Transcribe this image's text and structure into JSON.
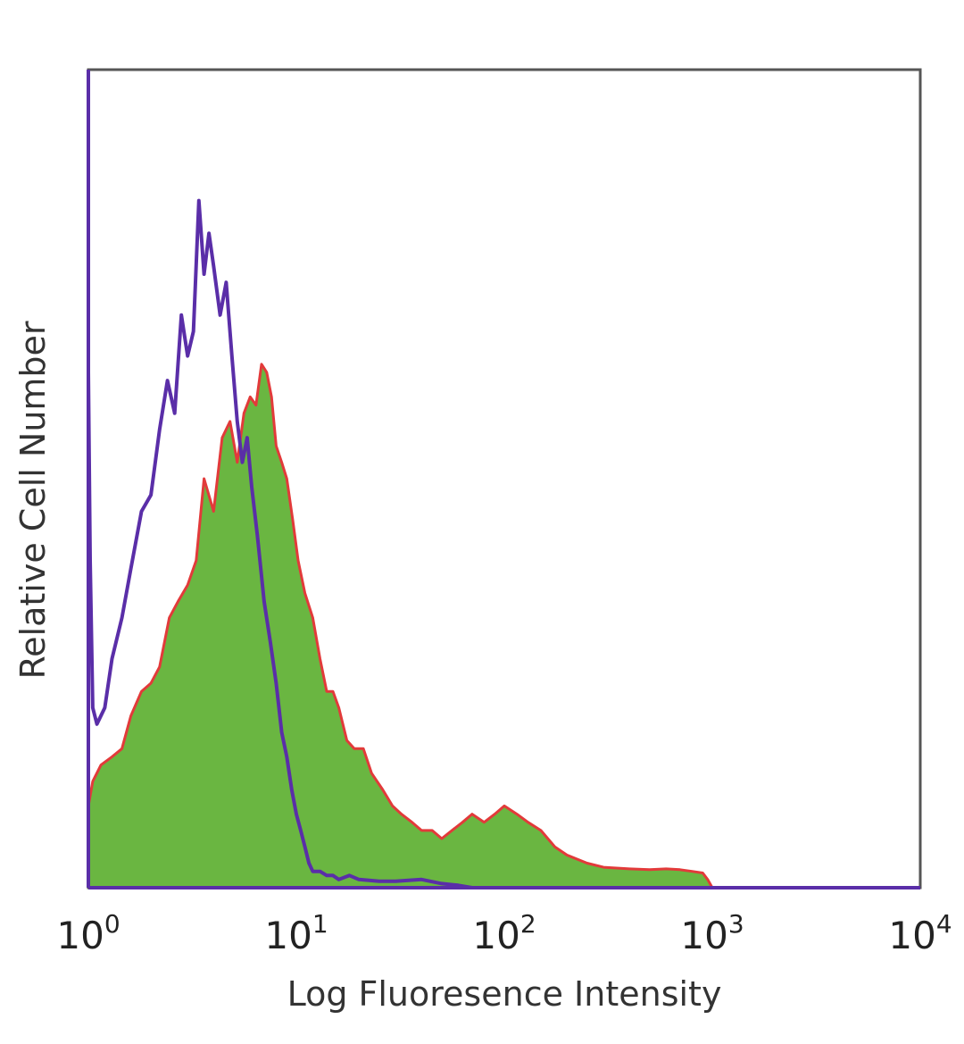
{
  "chart_data": {
    "type": "area",
    "xlabel": "Log Fluoresence Intensity",
    "ylabel": "Relative Cell Number",
    "x_scale": "log",
    "xlim": [
      1,
      10000
    ],
    "ylim": [
      0,
      100
    ],
    "grid": false,
    "x_ticks": [
      {
        "base": "10",
        "exp": "0",
        "value": 1
      },
      {
        "base": "10",
        "exp": "1",
        "value": 10
      },
      {
        "base": "10",
        "exp": "2",
        "value": 100
      },
      {
        "base": "10",
        "exp": "3",
        "value": 1000
      },
      {
        "base": "10",
        "exp": "4",
        "value": 10000
      }
    ],
    "colors": {
      "filled_fill": "#6ab641",
      "filled_edge": "#e23a3a",
      "outline": "#5a2ea8",
      "frame": "#555555"
    },
    "series": [
      {
        "style": "filled",
        "x": [
          1,
          1.05,
          1.15,
          1.3,
          1.45,
          1.6,
          1.8,
          2.0,
          2.2,
          2.45,
          2.7,
          3.0,
          3.3,
          3.6,
          4.0,
          4.4,
          4.8,
          5.2,
          5.6,
          6.0,
          6.4,
          6.8,
          7.2,
          7.6,
          8.0,
          8.5,
          9.0,
          9.6,
          10.2,
          11,
          12,
          13,
          14,
          15,
          16,
          17.5,
          19,
          21,
          23,
          26,
          29,
          32,
          36,
          40,
          45,
          50,
          56,
          63,
          70,
          80,
          90,
          100,
          115,
          130,
          150,
          175,
          200,
          250,
          300,
          400,
          500,
          600,
          700,
          800,
          900,
          950,
          1000
        ],
        "y": [
          10,
          13,
          15,
          16,
          17,
          21,
          24,
          25,
          27,
          33,
          35,
          37,
          40,
          50,
          46,
          55,
          57,
          52,
          58,
          60,
          59,
          64,
          63,
          60,
          54,
          52,
          50,
          45,
          40,
          36,
          33,
          28,
          24,
          24,
          22,
          18,
          17,
          17,
          14,
          12,
          10,
          9,
          8,
          7,
          7,
          6,
          7,
          8,
          9,
          8,
          9,
          10,
          9,
          8,
          7,
          5,
          4,
          3,
          2.5,
          2.3,
          2.2,
          2.3,
          2.2,
          2.0,
          1.8,
          1.0,
          0
        ]
      },
      {
        "style": "outline",
        "x": [
          1,
          1.02,
          1.05,
          1.1,
          1.2,
          1.3,
          1.45,
          1.6,
          1.8,
          2.0,
          2.2,
          2.4,
          2.6,
          2.8,
          3.0,
          3.2,
          3.4,
          3.6,
          3.8,
          4.0,
          4.3,
          4.6,
          4.9,
          5.2,
          5.5,
          5.8,
          6.1,
          6.5,
          7.0,
          7.5,
          8.0,
          8.5,
          9.0,
          9.5,
          10,
          10.5,
          11,
          11.5,
          12,
          13,
          14,
          15,
          16,
          18,
          20,
          25,
          30,
          40,
          50,
          60,
          70,
          1000,
          10000
        ],
        "y": [
          63,
          40,
          22,
          20,
          22,
          28,
          33,
          39,
          46,
          48,
          56,
          62,
          58,
          70,
          65,
          68,
          84,
          75,
          80,
          76,
          70,
          74,
          65,
          57,
          52,
          55,
          49,
          43,
          35,
          30,
          25,
          19,
          16,
          12,
          9,
          7,
          5,
          3,
          2,
          2,
          1.5,
          1.5,
          1,
          1.5,
          1,
          0.8,
          0.8,
          1,
          0.5,
          0.3,
          0,
          0,
          0
        ]
      }
    ]
  }
}
